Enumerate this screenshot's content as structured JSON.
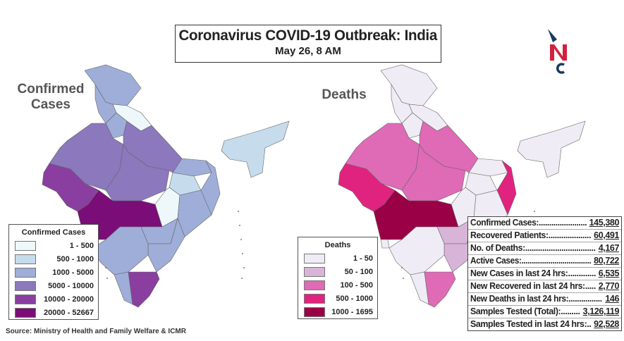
{
  "title": "Coronavirus COVID-19 Outbreak: India",
  "subtitle": "May 26, 8 AM",
  "logo_text": "NC",
  "colors": {
    "logo_dark": "#173a5e",
    "logo_red": "#d4203f"
  },
  "maps": [
    {
      "label": "Confirmed Cases",
      "legend_title": "Confirmed Cases",
      "legend": [
        {
          "range": "1 - 500",
          "color": "#eef8fb"
        },
        {
          "range": "500 - 1000",
          "color": "#c6dced"
        },
        {
          "range": "1000 - 5000",
          "color": "#9eaed8"
        },
        {
          "range": "5000 - 10000",
          "color": "#8b78bd"
        },
        {
          "range": "10000 - 20000",
          "color": "#8a3ea0"
        },
        {
          "range": "20000 - 52667",
          "color": "#7a0d78"
        }
      ],
      "levels": {
        "jk": 2,
        "hp": 2,
        "uk": 0,
        "hr": 2,
        "rj": 3,
        "gj": 4,
        "up": 3,
        "mp": 3,
        "br": 2,
        "jh": 1,
        "wb": 2,
        "cg": 0,
        "od": 2,
        "mh": 5,
        "goa": 0,
        "tg": 2,
        "ap": 2,
        "ka": 2,
        "kl": 2,
        "tn": 4,
        "ne": 1
      }
    },
    {
      "label": "Deaths",
      "legend_title": "Deaths",
      "legend": [
        {
          "range": "1 - 50",
          "color": "#efecf5"
        },
        {
          "range": "50 - 100",
          "color": "#d8b4d8"
        },
        {
          "range": "100 - 500",
          "color": "#df6ab6"
        },
        {
          "range": "500 - 1000",
          "color": "#e0237e"
        },
        {
          "range": "1000 - 1695",
          "color": "#9a0046"
        }
      ],
      "levels": {
        "jk": 0,
        "hp": 0,
        "uk": 0,
        "hr": 0,
        "rj": 2,
        "gj": 3,
        "up": 2,
        "mp": 2,
        "br": 0,
        "jh": 0,
        "wb": 3,
        "cg": 0,
        "od": 0,
        "mh": 4,
        "goa": 0,
        "tg": 1,
        "ap": 1,
        "ka": 0,
        "kl": 0,
        "tn": 2,
        "ne": 0
      }
    }
  ],
  "stats": [
    {
      "label": "Confirmed Cases:.......................",
      "value": "145,380"
    },
    {
      "label": "Recovered Patients:....................",
      "value": "60,491"
    },
    {
      "label": "No. of Deaths:.................................",
      "value": "4,167"
    },
    {
      "label": "Active Cases:..................................",
      "value": "80,722"
    },
    {
      "label": "New Cases in last 24 hrs:.............",
      "value": "6,535"
    },
    {
      "label": "New Recovered in last 24 hrs:.....",
      "value": "2,770"
    },
    {
      "label": "New Deaths in last 24 hrs:................",
      "value": "146"
    },
    {
      "label": "Samples Tested (Total):.........",
      "value": "3,126,119"
    },
    {
      "label": "Samples Tested in last 24 hrs:..",
      "value": "92,528"
    }
  ],
  "source": "Source: Ministry of Health and Family Welfare & ICMR"
}
